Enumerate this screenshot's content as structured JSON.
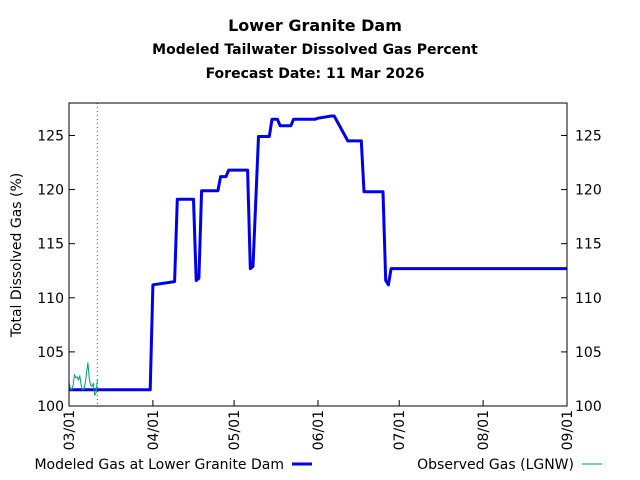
{
  "chart_data": {
    "type": "line",
    "title": "Lower Granite Dam",
    "subtitle": "Modeled Tailwater Dissolved Gas Percent",
    "forecast_date_label": "Forecast Date: 11 Mar 2026",
    "ylabel": "Total Dissolved Gas (%)",
    "xlabel": "",
    "ylim": [
      100,
      128
    ],
    "xlim": [
      0,
      184
    ],
    "y_ticks": [
      100,
      105,
      110,
      115,
      120,
      125
    ],
    "x_ticks": [
      {
        "value": 0,
        "label": "03/01"
      },
      {
        "value": 31,
        "label": "04/01"
      },
      {
        "value": 61,
        "label": "05/01"
      },
      {
        "value": 92,
        "label": "06/01"
      },
      {
        "value": 122,
        "label": "07/01"
      },
      {
        "value": 153,
        "label": "08/01"
      },
      {
        "value": 184,
        "label": "09/01"
      }
    ],
    "forecast_marker_day": 10.5,
    "grid": false,
    "series": [
      {
        "name": "Modeled Gas at Lower Granite Dam",
        "color": "#0000ee",
        "line_width": 3,
        "legend_position": "bottom-left",
        "x": [
          0,
          30,
          31,
          39,
          40,
          46,
          47,
          48,
          49,
          55,
          56,
          58,
          59,
          66,
          67,
          68,
          70,
          74,
          75,
          77,
          78,
          82,
          83,
          91,
          92,
          97,
          98,
          103,
          104,
          108,
          109,
          111,
          112,
          116,
          117,
          118,
          119,
          121,
          184
        ],
        "values": [
          101.5,
          101.5,
          111.2,
          111.5,
          119.1,
          119.1,
          111.6,
          111.8,
          119.9,
          119.9,
          121.2,
          121.2,
          121.8,
          121.8,
          112.7,
          112.9,
          124.9,
          124.9,
          126.5,
          126.5,
          125.9,
          125.9,
          126.5,
          126.5,
          126.6,
          126.8,
          126.8,
          124.5,
          124.5,
          124.5,
          119.8,
          119.8,
          119.8,
          119.8,
          111.6,
          111.2,
          112.7,
          112.7,
          112.7
        ]
      },
      {
        "name": "Observed Gas (LGNW)",
        "color": "#009e73",
        "line_width": 1,
        "legend_position": "bottom-right",
        "x": [
          0,
          0.5,
          1,
          1.5,
          2,
          2.5,
          3,
          3.5,
          4,
          4.5,
          5,
          5.5,
          6,
          6.5,
          7,
          7.5,
          8,
          8.5,
          9,
          9.5,
          10,
          10.5
        ],
        "values": [
          102.2,
          101.6,
          101.5,
          101.9,
          102.9,
          102.6,
          102.7,
          102.4,
          102.8,
          101.9,
          101.5,
          101.6,
          102.1,
          103.1,
          104.0,
          102.5,
          101.9,
          101.8,
          102.1,
          101.0,
          101.2,
          102.5
        ]
      }
    ]
  }
}
